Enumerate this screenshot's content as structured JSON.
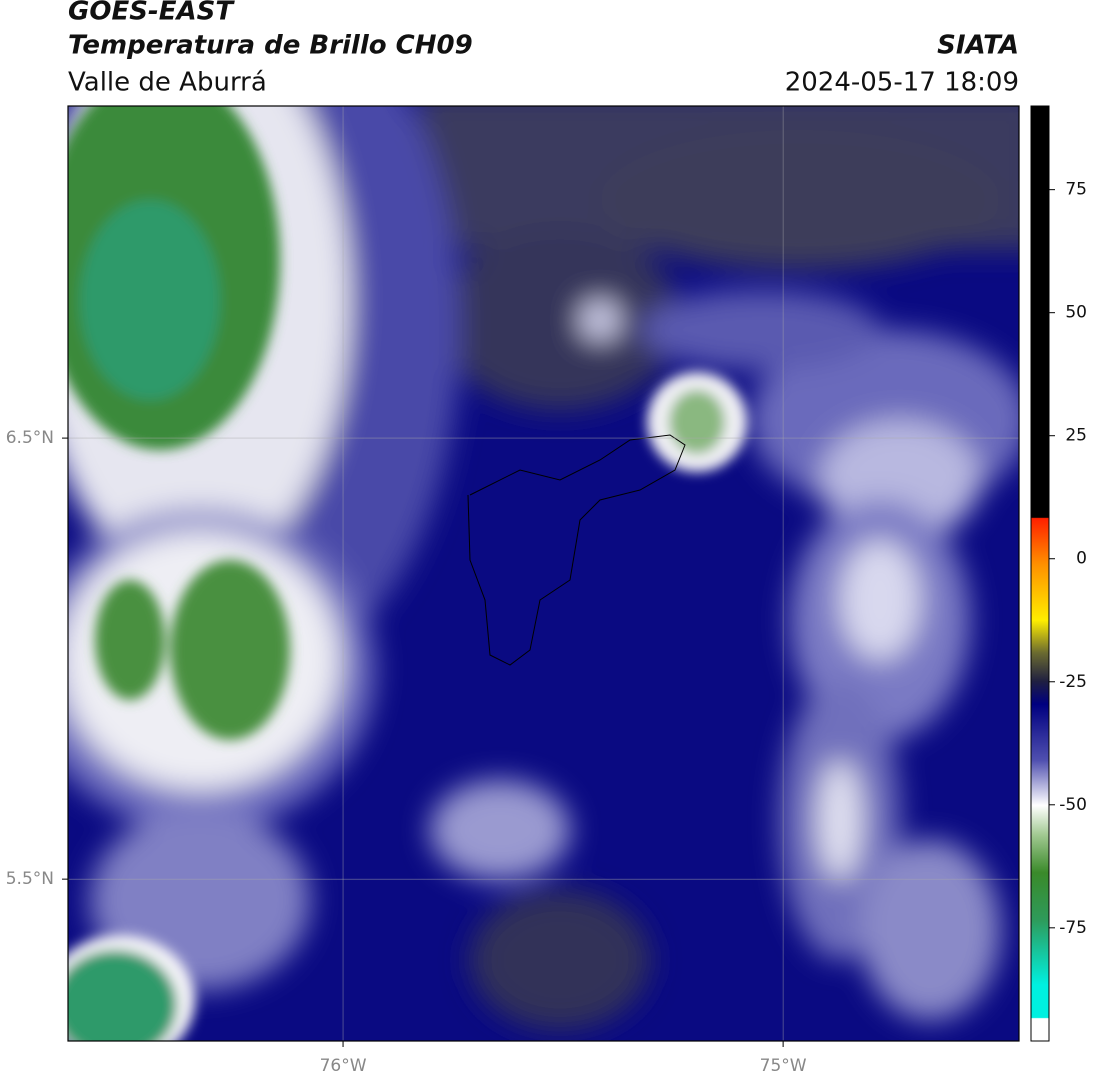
{
  "header": {
    "title": "GOES-EAST",
    "subtitle": "Temperatura de Brillo CH09",
    "region": "Valle de Aburrá",
    "source": "SIATA",
    "datetime": "2024-05-17 18:09"
  },
  "map": {
    "xlim": [
      -76.625,
      -74.464
    ],
    "ylim": [
      5.133,
      7.253
    ],
    "xticks": [
      {
        "value": -76,
        "label": "76°W"
      },
      {
        "value": -75,
        "label": "75°W"
      }
    ],
    "yticks": [
      {
        "value": 6.5,
        "label": "6.5°N"
      },
      {
        "value": 5.5,
        "label": "5.5°N"
      }
    ],
    "grid": true
  },
  "colorbar": {
    "lim": [
      -98,
      92
    ],
    "ticks": [
      75,
      50,
      25,
      0,
      -25,
      -50,
      -75
    ]
  }
}
